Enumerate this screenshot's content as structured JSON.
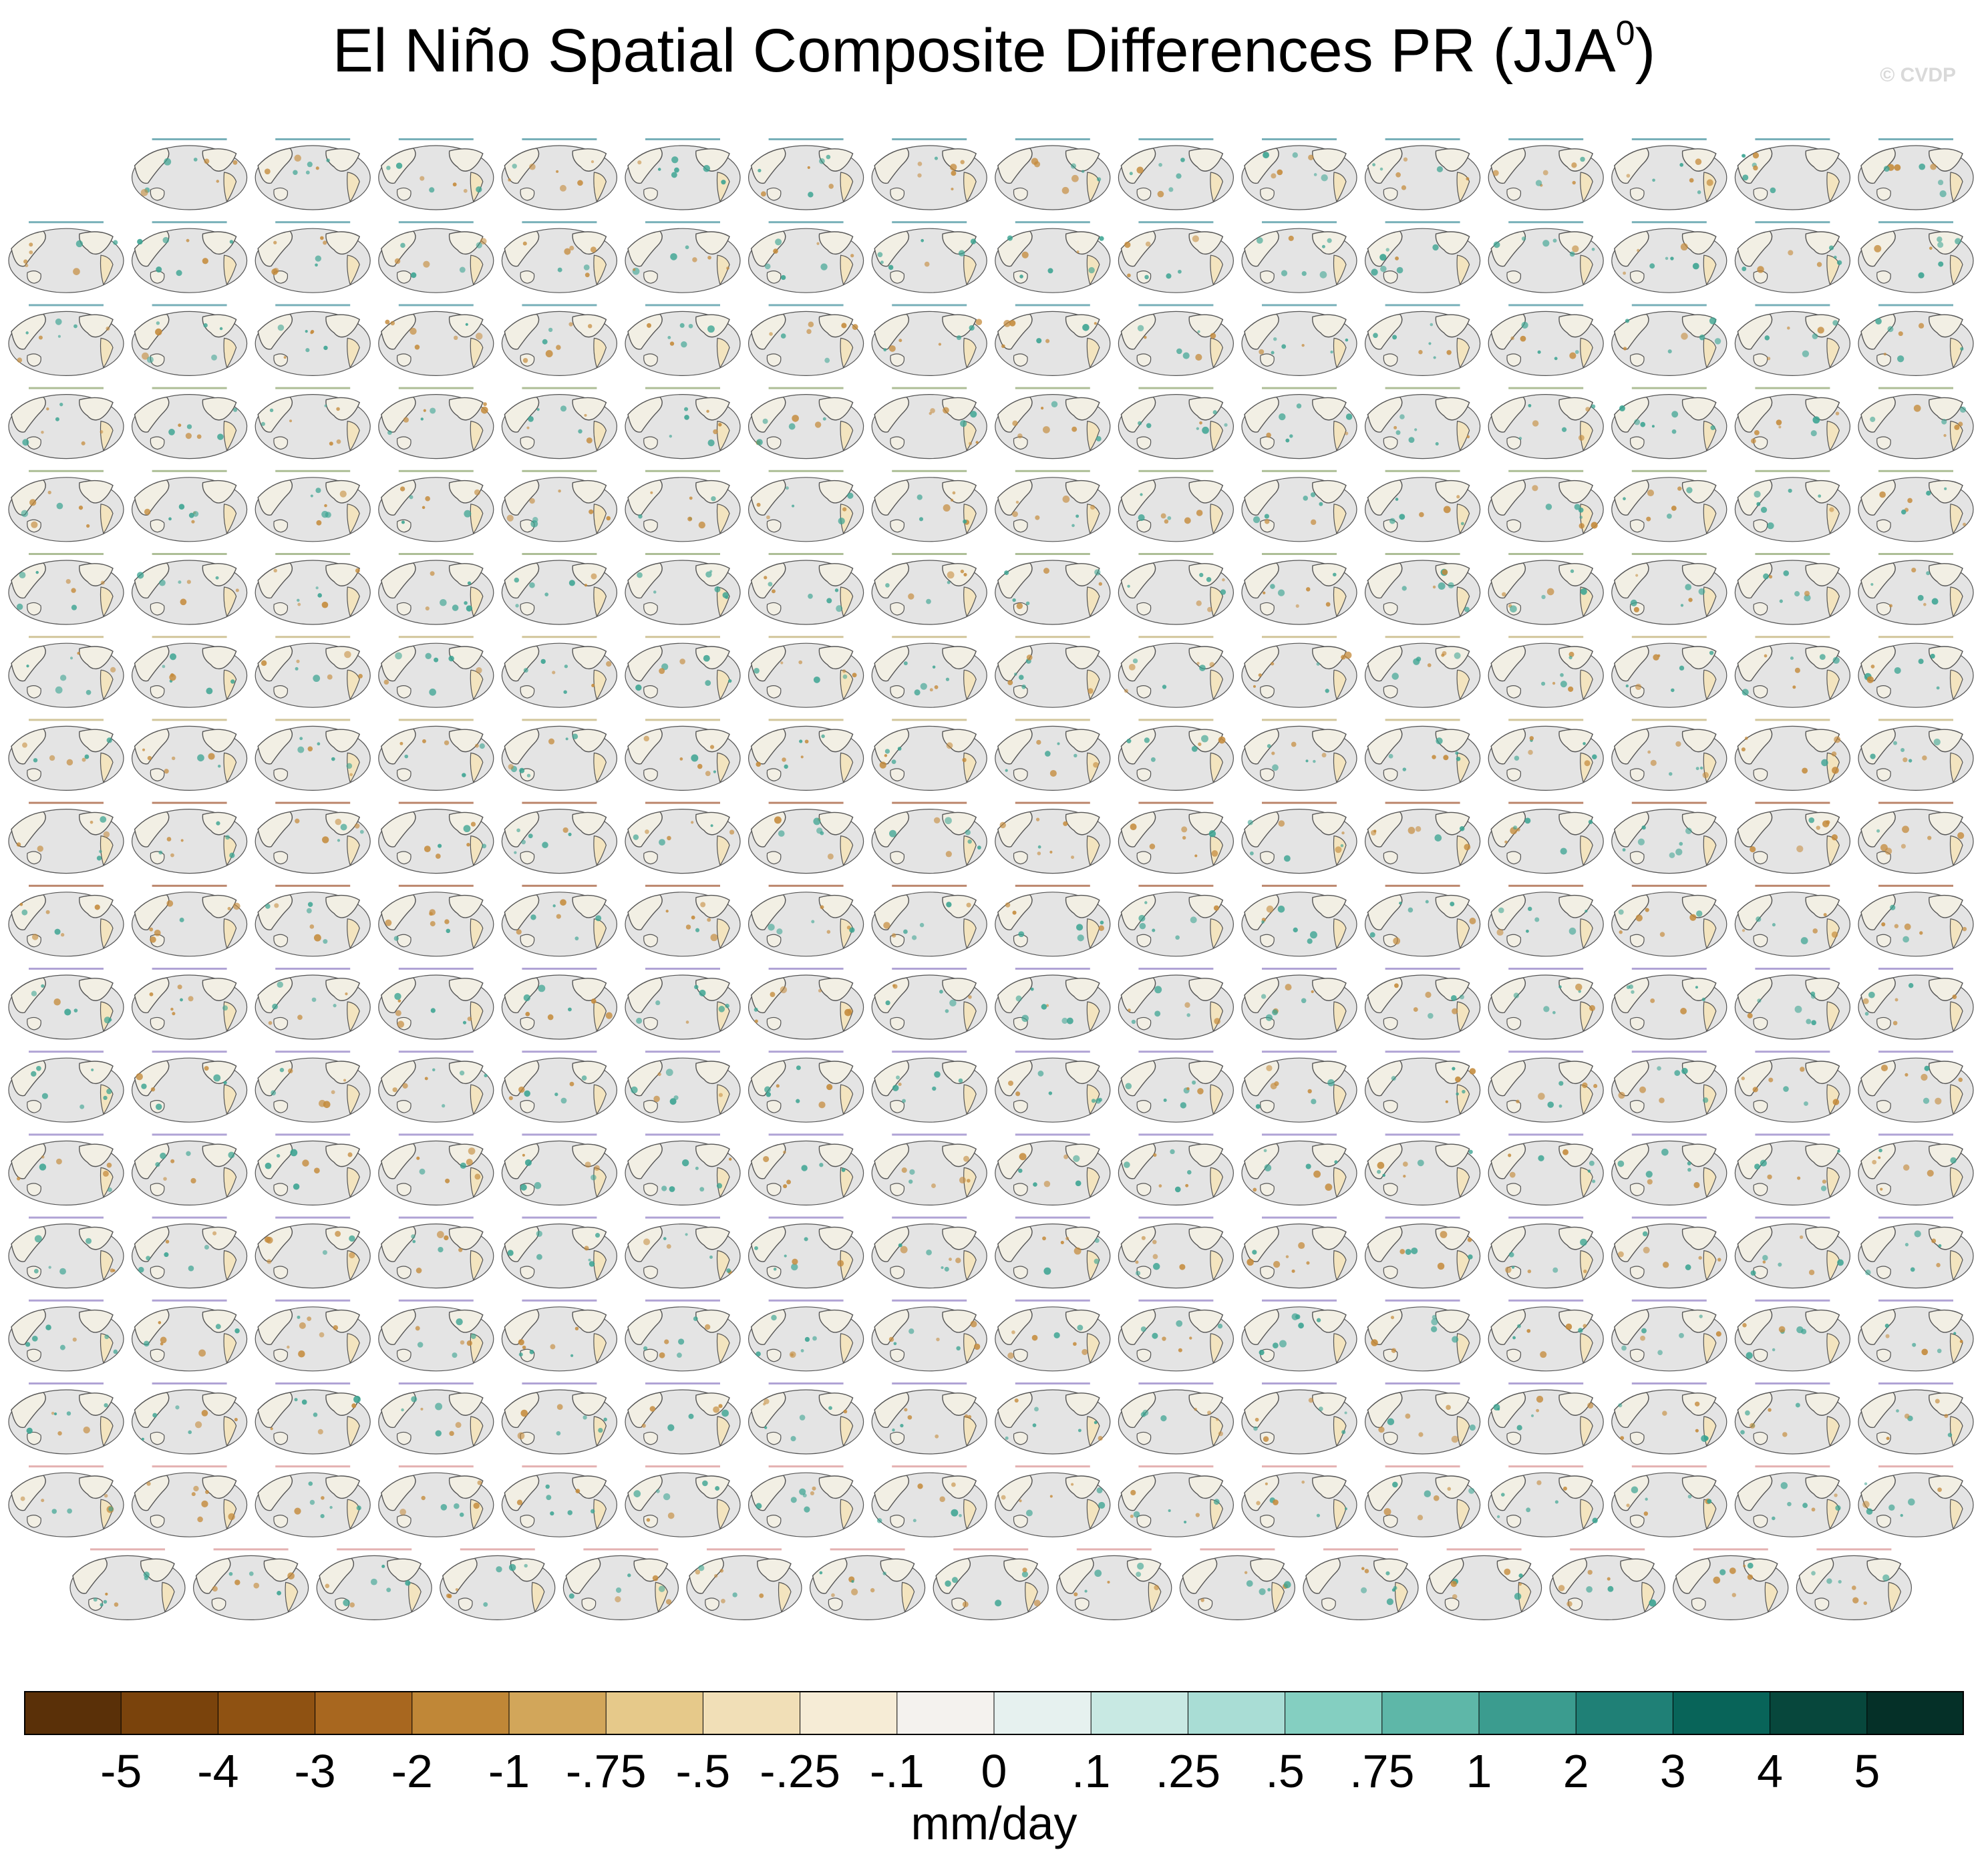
{
  "chart_data": {
    "type": "heatmap",
    "title": "El Niño Spatial Composite Differences PR (JJA",
    "title_superscript": "0",
    "watermark": "© CVDP",
    "panel_grid": {
      "rows": 18,
      "columns": 16,
      "total_panels": 287
    },
    "panel_colors": {
      "globe": "#e4e4e4",
      "coast": "#555555",
      "wet": "#3aa391",
      "dry": "#c48a3a",
      "label_teal": "#3f8f9b",
      "label_green": "#8aa36a",
      "label_olive": "#bfae70",
      "label_brown": "#a0522d",
      "label_purple": "#8e7cc3",
      "label_pink": "#d89090"
    },
    "colorbar": {
      "units": "mm/day",
      "tick_labels": [
        "-5",
        "-4",
        "-3",
        "-2",
        "-1",
        "-.75",
        "-.5",
        "-.25",
        "-.1",
        "0",
        ".1",
        ".25",
        ".5",
        ".75",
        "1",
        "2",
        "3",
        "4",
        "5"
      ],
      "colors": [
        "#5a3008",
        "#7a430c",
        "#8f5212",
        "#a8671f",
        "#c08737",
        "#d2a65a",
        "#e6c98a",
        "#f1dfb7",
        "#f6ecd6",
        "#f4f2ee",
        "#e6f1ef",
        "#c8e9e3",
        "#a9ddd5",
        "#84cfc1",
        "#5eb7a8",
        "#3b9c8f",
        "#1f8076",
        "#086459",
        "#07473c",
        "#053028"
      ]
    }
  }
}
